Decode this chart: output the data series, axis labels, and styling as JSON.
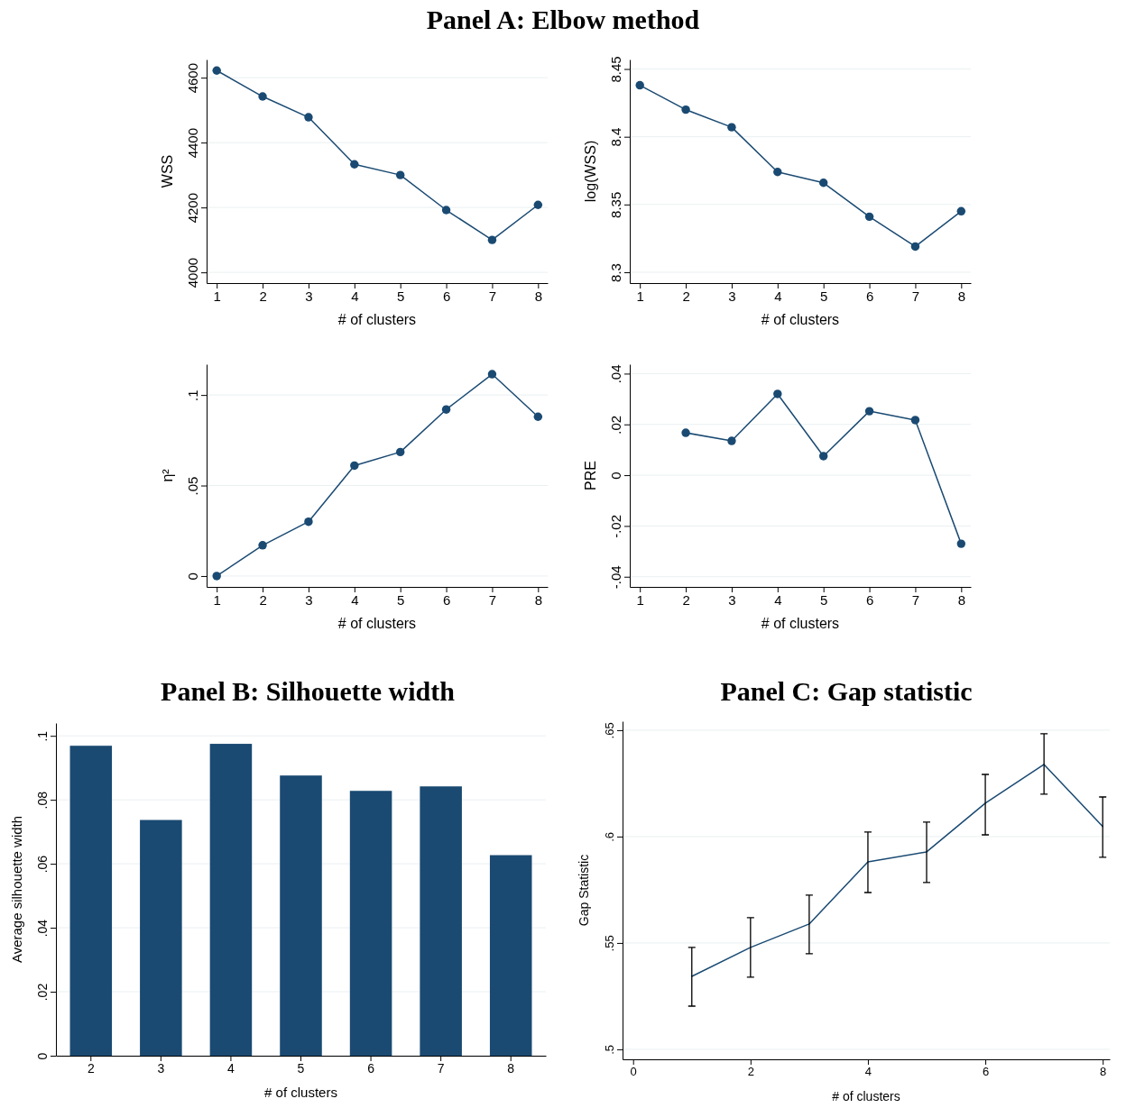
{
  "chart_data": [
    {
      "type": "line",
      "title": "Panel A: Elbow method",
      "xlabel": "# of clusters",
      "ylabel": "WSS",
      "x": [
        1,
        2,
        3,
        4,
        5,
        6,
        7,
        8
      ],
      "values": [
        4622,
        4542,
        4478,
        4333,
        4300,
        4192,
        4100,
        4208
      ],
      "color": "#1a4a72",
      "marker": "circle",
      "xlim": [
        0.78,
        8.21
      ],
      "xticks": [
        1,
        2,
        3,
        4,
        5,
        6,
        7,
        8
      ],
      "ylim": [
        3967,
        4656
      ],
      "yticks": [
        4000,
        4200,
        4400,
        4600
      ],
      "grid": "y"
    },
    {
      "type": "line",
      "xlabel": "# of clusters",
      "ylabel": "log(WSS)",
      "x": [
        1,
        2,
        3,
        4,
        5,
        6,
        7,
        8
      ],
      "values": [
        8.438,
        8.42,
        8.407,
        8.374,
        8.366,
        8.341,
        8.319,
        8.345
      ],
      "color": "#1a4a72",
      "marker": "circle",
      "xlim": [
        0.78,
        8.21
      ],
      "xticks": [
        1,
        2,
        3,
        4,
        5,
        6,
        7,
        8
      ],
      "ylim": [
        8.292,
        8.457
      ],
      "yticks": [
        8.3,
        8.35,
        8.4,
        8.45
      ],
      "grid": "y"
    },
    {
      "type": "line",
      "xlabel": "# of clusters",
      "ylabel": "η²",
      "x": [
        1,
        2,
        3,
        4,
        5,
        6,
        7,
        8
      ],
      "values": [
        0,
        0.017,
        0.03,
        0.061,
        0.0685,
        0.092,
        0.1115,
        0.088
      ],
      "color": "#1a4a72",
      "marker": "circle",
      "xlim": [
        0.78,
        8.21
      ],
      "xticks": [
        1,
        2,
        3,
        4,
        5,
        6,
        7,
        8
      ],
      "ylim": [
        -0.006,
        0.117
      ],
      "yticks": [
        0,
        {
          "value": 0.05,
          "label": ".05"
        },
        {
          "value": 0.1,
          "label": ".1"
        }
      ],
      "grid": "y"
    },
    {
      "type": "line",
      "xlabel": "# of clusters",
      "ylabel": "PRE",
      "x": [
        2,
        3,
        4,
        5,
        6,
        7,
        8
      ],
      "values": [
        0.0167,
        0.0135,
        0.032,
        0.0075,
        0.0252,
        0.0217,
        -0.027
      ],
      "color": "#1a4a72",
      "marker": "circle",
      "xlim": [
        0.78,
        8.21
      ],
      "xticks": [
        1,
        2,
        3,
        4,
        5,
        6,
        7,
        8
      ],
      "ylim": [
        -0.044,
        0.0437
      ],
      "yticks": [
        {
          "value": -0.04,
          "label": "-.04"
        },
        {
          "value": -0.02,
          "label": "-.02"
        },
        0,
        {
          "value": 0.02,
          "label": ".02"
        },
        {
          "value": 0.04,
          "label": ".04"
        }
      ],
      "grid": "y"
    },
    {
      "type": "bar",
      "title": "Panel B: Silhouette width",
      "xlabel": "# of clusters",
      "ylabel": "Average silhouette width",
      "categories": [
        "2",
        "3",
        "4",
        "5",
        "6",
        "7",
        "8"
      ],
      "values": [
        0.0969,
        0.0737,
        0.0975,
        0.0876,
        0.0828,
        0.0842,
        0.0627
      ],
      "color": "#1a4a72",
      "ylim": [
        0,
        0.104
      ],
      "yticks": [
        0,
        {
          "value": 0.02,
          "label": ".02"
        },
        {
          "value": 0.04,
          "label": ".04"
        },
        {
          "value": 0.06,
          "label": ".06"
        },
        {
          "value": 0.08,
          "label": ".08"
        },
        {
          "value": 0.1,
          "label": ".1"
        }
      ],
      "grid": "y"
    },
    {
      "type": "line",
      "title": "Panel C: Gap statistic",
      "xlabel": "# of clusters",
      "ylabel": "Gap Statistic",
      "x": [
        1,
        2,
        3,
        4,
        5,
        6,
        7,
        8
      ],
      "values": [
        0.5343,
        0.5479,
        0.5589,
        0.5881,
        0.5928,
        0.6157,
        0.6339,
        0.6047
      ],
      "errors": [
        [
          0.5203,
          0.5479
        ],
        [
          0.5339,
          0.5619
        ],
        [
          0.5449,
          0.5725
        ],
        [
          0.5737,
          0.6021
        ],
        [
          0.5784,
          0.6068
        ],
        [
          0.6008,
          0.6292
        ],
        [
          0.6199,
          0.6483
        ],
        [
          0.5903,
          0.6186
        ]
      ],
      "color": "#1a4a72",
      "marker": "none",
      "xlim": [
        -0.18,
        8.12
      ],
      "xticks": [
        0,
        2,
        4,
        6,
        8
      ],
      "ylim": [
        0.4953,
        0.6542
      ],
      "yticks": [
        {
          "value": 0.5,
          "label": ".5"
        },
        {
          "value": 0.55,
          "label": ".55"
        },
        {
          "value": 0.6,
          "label": ".6"
        },
        {
          "value": 0.65,
          "label": ".65"
        }
      ],
      "grid": "y"
    }
  ]
}
